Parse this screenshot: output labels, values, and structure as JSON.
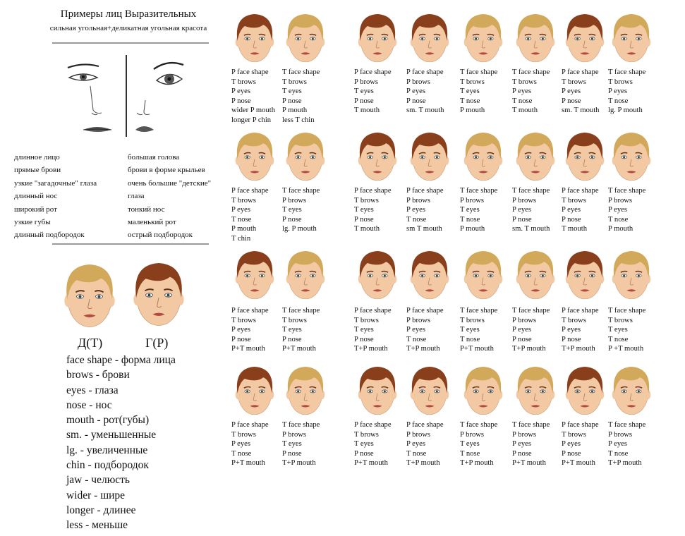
{
  "header": {
    "title": "Примеры лиц Выразительных",
    "subtitle": "сильная угольная+деликатная угольная красота"
  },
  "traits": {
    "left": [
      "длинное лицо",
      "прямые брови",
      "узкие \"загадочные\" глаза",
      "длинный нос",
      "широкий рот",
      "узкие губы",
      "длинный подбородок"
    ],
    "right": [
      "большая голова",
      "брови в форме крыльев",
      "очень большие \"детские\"",
      "глаза",
      "тонкий нос",
      "маленький рот",
      "острый подбородок"
    ]
  },
  "type_labels": {
    "left": "Д(Т)",
    "right": "Г(Р)"
  },
  "glossary": [
    "face shape - форма лица",
    "brows - брови",
    "eyes - глаза",
    "nose - нос",
    "mouth - рот(губы)",
    "sm. - уменьшенные",
    "lg. - увеличенные",
    "chin - подбородок",
    "jaw - челюсть",
    "wider - шире",
    "longer - длинее",
    "less - меньше"
  ],
  "colors": {
    "dark_hair": "#8a3f1c",
    "light_hair": "#d2a95a",
    "skin": "#f3c9a3",
    "divider": "#9a9a9a"
  },
  "face_rows": [
    [
      {
        "hair": "dark",
        "lines": [
          "P face shape",
          "T brows",
          "P eyes",
          "P nose",
          "wider P mouth",
          "longer P chin"
        ]
      },
      {
        "hair": "light",
        "lines": [
          "T face shape",
          "T brows",
          "T eyes",
          "P nose",
          "P  mouth",
          "less T chin"
        ]
      },
      {
        "hair": "dark",
        "lines": [
          "P face shape",
          "P brows",
          "T eyes",
          "P nose",
          "T mouth"
        ]
      },
      {
        "hair": "dark",
        "lines": [
          "P face shape",
          "P brows",
          "P eyes",
          "P nose",
          "sm. T mouth"
        ]
      },
      {
        "hair": "light",
        "lines": [
          "T face shape",
          "T brows",
          "T eyes",
          "T nose",
          "P mouth"
        ]
      },
      {
        "hair": "light",
        "lines": [
          "T face shape",
          "T brows",
          "P eyes",
          "T nose",
          "T mouth"
        ]
      },
      {
        "hair": "dark",
        "lines": [
          "P face shape",
          "T brows",
          "P eyes",
          "P nose",
          "sm. T mouth"
        ]
      },
      {
        "hair": "light",
        "lines": [
          "T face shape",
          "T brows",
          "P eyes",
          "T nose",
          "lg. P mouth"
        ]
      }
    ],
    [
      {
        "hair": "light",
        "lines": [
          "P face shape",
          "T brows",
          "P eyes",
          "T nose",
          "P mouth",
          "T chin"
        ]
      },
      {
        "hair": "light",
        "lines": [
          "T face shape",
          "P brows",
          "T eyes",
          "P nose",
          "lg. P mouth"
        ]
      },
      {
        "hair": "dark",
        "lines": [
          "P face shape",
          "T brows",
          "T eyes",
          "P nose",
          "T mouth"
        ]
      },
      {
        "hair": "dark",
        "lines": [
          "P face shape",
          "P brows",
          "P eyes",
          "T nose",
          "sm T mouth"
        ]
      },
      {
        "hair": "light",
        "lines": [
          "T face shape",
          "P brows",
          "T eyes",
          "T nose",
          "P mouth"
        ]
      },
      {
        "hair": "light",
        "lines": [
          "T face shape",
          "P brows",
          "P eyes",
          "P nose",
          "sm. T mouth"
        ]
      },
      {
        "hair": "dark",
        "lines": [
          "P face shape",
          "T brows",
          "P eyes",
          "P nose",
          "T mouth"
        ]
      },
      {
        "hair": "light",
        "lines": [
          "T face shape",
          "P brows",
          "P eyes",
          "T nose",
          "P mouth"
        ]
      }
    ],
    [
      {
        "hair": "dark",
        "lines": [
          "P face shape",
          "T brows",
          "P eyes",
          "P nose",
          "P+T mouth"
        ]
      },
      {
        "hair": "light",
        "lines": [
          "T face shape",
          "T brows",
          "T eyes",
          "P nose",
          "P+T mouth"
        ]
      },
      {
        "hair": "dark",
        "lines": [
          "P face shape",
          "T brows",
          "T eyes",
          "P nose",
          "T+P mouth"
        ]
      },
      {
        "hair": "dark",
        "lines": [
          "P face shape",
          "P brows",
          "P eyes",
          "T nose",
          "T+P mouth"
        ]
      },
      {
        "hair": "light",
        "lines": [
          "T face shape",
          "T brows",
          "T eyes",
          "T nose",
          "P+T mouth"
        ]
      },
      {
        "hair": "light",
        "lines": [
          "T face shape",
          "P brows",
          "P eyes",
          "P nose",
          "T+P  mouth"
        ]
      },
      {
        "hair": "dark",
        "lines": [
          "P face shape",
          "T brows",
          "P eyes",
          "P nose",
          "T+P  mouth"
        ]
      },
      {
        "hair": "light",
        "lines": [
          "T face shape",
          "T brows",
          "T eyes",
          "T nose",
          "P +T mouth"
        ]
      }
    ],
    [
      {
        "hair": "dark",
        "lines": [
          "P face shape",
          "T brows",
          "P eyes",
          "T nose",
          "P+T mouth"
        ]
      },
      {
        "hair": "light",
        "lines": [
          "T face shape",
          "P brows",
          "T eyes",
          "P nose",
          "T+P mouth"
        ]
      },
      {
        "hair": "dark",
        "lines": [
          "P face shape",
          "T brows",
          "T eyes",
          "P nose",
          "P+T mouth"
        ]
      },
      {
        "hair": "dark",
        "lines": [
          "P face shape",
          "P brows",
          "P eyes",
          "T nose",
          "T+P mouth"
        ]
      },
      {
        "hair": "light",
        "lines": [
          "T face shape",
          "P brows",
          "T eyes",
          "T nose",
          "T+P mouth"
        ]
      },
      {
        "hair": "light",
        "lines": [
          "T face shape",
          "P brows",
          "P eyes",
          "P nose",
          "P+T mouth"
        ]
      },
      {
        "hair": "dark",
        "lines": [
          "P face shape",
          "T brows",
          "P eyes",
          "P nose",
          "P+T mouth"
        ]
      },
      {
        "hair": "light",
        "lines": [
          "T face shape",
          "P brows",
          "P eyes",
          "T nose",
          "T+P mouth"
        ]
      }
    ]
  ]
}
